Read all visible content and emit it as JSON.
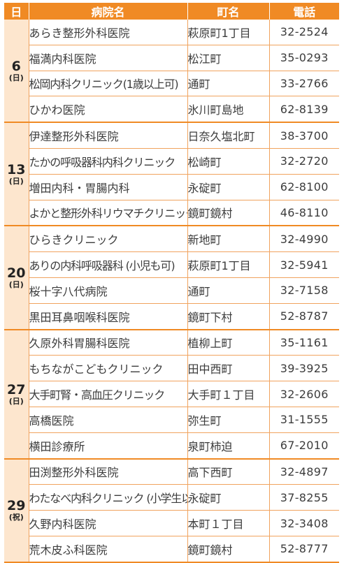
{
  "header": {
    "day": "日",
    "hospital": "病院名",
    "town": "町名",
    "phone": "電話"
  },
  "groups": [
    {
      "day": "6",
      "weekday": "(日)",
      "rows": [
        {
          "name": "あらき整形外科医院",
          "town": "萩原町1丁目",
          "phone": "32-2524"
        },
        {
          "name": "福満内科医院",
          "town": "松江町",
          "phone": "35-0293"
        },
        {
          "name": "松岡内科クリニック(1歳以上可)",
          "town": "通町",
          "phone": "33-2766"
        },
        {
          "name": "ひかわ医院",
          "town": "氷川町島地",
          "phone": "62-8139"
        }
      ]
    },
    {
      "day": "13",
      "weekday": "(日)",
      "rows": [
        {
          "name": "伊達整形外科医院",
          "town": "日奈久塩北町",
          "phone": "38-3700"
        },
        {
          "name": "たかの呼吸器科内科クリニック",
          "town": "松崎町",
          "phone": "32-2720"
        },
        {
          "name": "増田内科・胃腸内科",
          "town": "永碇町",
          "phone": "62-8100"
        },
        {
          "name": "よかと整形外科リウマチクリニック",
          "town": "鏡町鏡村",
          "phone": "46-8110"
        }
      ]
    },
    {
      "day": "20",
      "weekday": "(日)",
      "rows": [
        {
          "name": "ひらきクリニック",
          "town": "新地町",
          "phone": "32-4990"
        },
        {
          "name": "ありの内科呼吸器科 (小児も可)",
          "town": "萩原町1丁目",
          "phone": "32-5941"
        },
        {
          "name": "桜十字八代病院",
          "town": "通町",
          "phone": "32-7158"
        },
        {
          "name": "黒田耳鼻咽喉科医院",
          "town": "鏡町下村",
          "phone": "52-8787"
        }
      ]
    },
    {
      "day": "27",
      "weekday": "(日)",
      "rows": [
        {
          "name": "久原外科胃腸科医院",
          "town": "植柳上町",
          "phone": "35-1161"
        },
        {
          "name": "もちながこどもクリニック",
          "town": "田中西町",
          "phone": "39-3925"
        },
        {
          "name": "大手町腎・高血圧クリニック",
          "town": "大手町１丁目",
          "phone": "32-2606"
        },
        {
          "name": "高橋医院",
          "town": "弥生町",
          "phone": "31-1555"
        },
        {
          "name": "横田診療所",
          "town": "泉町柿迫",
          "phone": "67-2010"
        }
      ]
    },
    {
      "day": "29",
      "weekday": "(祝)",
      "rows": [
        {
          "name": "田渕整形外科医院",
          "town": "高下西町",
          "phone": "32-4897"
        },
        {
          "name": "わたなべ内科クリニック (小学生以上可)",
          "town": "永碇町",
          "phone": "37-8255"
        },
        {
          "name": "久野内科医院",
          "town": "本町１丁目",
          "phone": "32-3408"
        },
        {
          "name": "荒木皮ふ科医院",
          "town": "鏡町鏡村",
          "phone": "52-8777"
        }
      ]
    }
  ]
}
